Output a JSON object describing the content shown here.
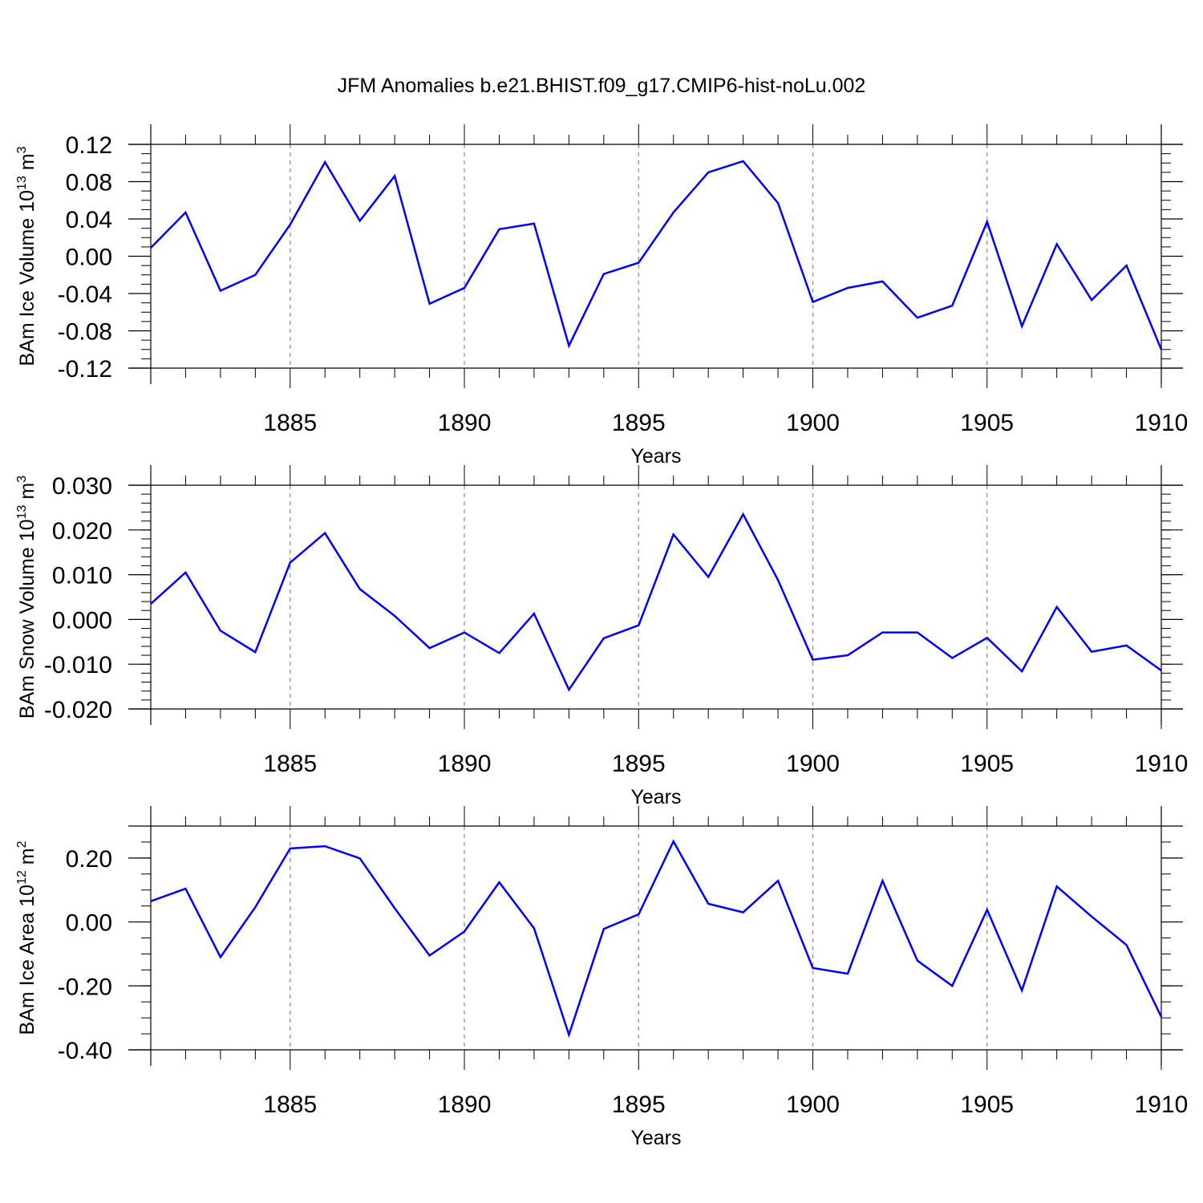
{
  "figure": {
    "title": "JFM Anomalies b.e21.BHIST.f09_g17.CMIP6-hist-noLu.002"
  },
  "chart_data": [
    {
      "type": "line",
      "xlabel": "Years",
      "ylabel": "BAm Ice Volume 10",
      "ylabel_exp": "13",
      "ylabel_unit": "m",
      "ylabel_unit_exp": "3",
      "xlim": [
        1881,
        1910
      ],
      "ylim": [
        -0.12,
        0.12
      ],
      "x_ticks": [
        1885,
        1890,
        1895,
        1900,
        1905,
        1910
      ],
      "x_tick_labels": [
        "1885",
        "1890",
        "1895",
        "1900",
        "1905",
        "1910"
      ],
      "y_ticks": [
        -0.12,
        -0.08,
        -0.04,
        0.0,
        0.04,
        0.08,
        0.12
      ],
      "y_tick_labels": [
        "-0.12",
        "-0.08",
        "-0.04",
        "0.00",
        "0.04",
        "0.08",
        "0.12"
      ],
      "y_minor_step": 0.01,
      "vgrid": "dashed at major x ticks",
      "x": [
        1881,
        1882,
        1883,
        1884,
        1885,
        1886,
        1887,
        1888,
        1889,
        1890,
        1891,
        1892,
        1893,
        1894,
        1895,
        1896,
        1897,
        1898,
        1899,
        1900,
        1901,
        1902,
        1903,
        1904,
        1905,
        1906,
        1907,
        1908,
        1909,
        1910
      ],
      "y": [
        0.009,
        0.047,
        -0.037,
        -0.02,
        0.034,
        0.101,
        0.038,
        0.086,
        -0.051,
        -0.034,
        0.029,
        0.035,
        -0.096,
        -0.019,
        -0.007,
        0.047,
        0.09,
        0.102,
        0.057,
        -0.049,
        -0.034,
        -0.027,
        -0.066,
        -0.053,
        0.037,
        -0.075,
        0.013,
        -0.047,
        -0.01,
        -0.1
      ],
      "line_color": "#0000ff"
    },
    {
      "type": "line",
      "xlabel": "Years",
      "ylabel": "BAm Snow Volume 10",
      "ylabel_exp": "13",
      "ylabel_unit": "m",
      "ylabel_unit_exp": "3",
      "xlim": [
        1881,
        1910
      ],
      "ylim": [
        -0.02,
        0.03
      ],
      "x_ticks": [
        1885,
        1890,
        1895,
        1900,
        1905,
        1910
      ],
      "x_tick_labels": [
        "1885",
        "1890",
        "1895",
        "1900",
        "1905",
        "1910"
      ],
      "y_ticks": [
        -0.02,
        -0.01,
        0.0,
        0.01,
        0.02,
        0.03
      ],
      "y_tick_labels": [
        "-0.020",
        "-0.010",
        "0.000",
        "0.010",
        "0.020",
        "0.030"
      ],
      "y_minor_step": 0.002,
      "vgrid": "dashed at major x ticks",
      "x": [
        1881,
        1882,
        1883,
        1884,
        1885,
        1886,
        1887,
        1888,
        1889,
        1890,
        1891,
        1892,
        1893,
        1894,
        1895,
        1896,
        1897,
        1898,
        1899,
        1900,
        1901,
        1902,
        1903,
        1904,
        1905,
        1906,
        1907,
        1908,
        1909,
        1910
      ],
      "y": [
        0.0035,
        0.0105,
        -0.0025,
        -0.0073,
        0.0127,
        0.0193,
        0.0068,
        0.0008,
        -0.0064,
        -0.0029,
        -0.0075,
        0.0013,
        -0.0157,
        -0.0042,
        -0.0013,
        0.019,
        0.0095,
        0.0235,
        0.0088,
        -0.009,
        -0.008,
        -0.0029,
        -0.0029,
        -0.0086,
        -0.0041,
        -0.0116,
        0.0028,
        -0.0072,
        -0.0058,
        -0.0114
      ],
      "line_color": "#0000ff"
    },
    {
      "type": "line",
      "xlabel": "Years",
      "ylabel": "BAm Ice Area 10",
      "ylabel_exp": "12",
      "ylabel_unit": "m",
      "ylabel_unit_exp": "2",
      "xlim": [
        1881,
        1910
      ],
      "ylim": [
        -0.4,
        0.3
      ],
      "x_ticks": [
        1885,
        1890,
        1895,
        1900,
        1905,
        1910
      ],
      "x_tick_labels": [
        "1885",
        "1890",
        "1895",
        "1900",
        "1905",
        "1910"
      ],
      "y_ticks": [
        -0.4,
        -0.2,
        0.0,
        0.2
      ],
      "y_tick_labels": [
        "-0.40",
        "-0.20",
        "0.00",
        "0.20"
      ],
      "y_minor_step": 0.05,
      "vgrid": "dashed at major x ticks",
      "x": [
        1881,
        1882,
        1883,
        1884,
        1885,
        1886,
        1887,
        1888,
        1889,
        1890,
        1891,
        1892,
        1893,
        1894,
        1895,
        1896,
        1897,
        1898,
        1899,
        1900,
        1901,
        1902,
        1903,
        1904,
        1905,
        1906,
        1907,
        1908,
        1909,
        1910
      ],
      "y": [
        0.065,
        0.104,
        -0.11,
        0.046,
        0.23,
        0.237,
        0.199,
        0.043,
        -0.105,
        -0.03,
        0.124,
        -0.02,
        -0.353,
        -0.022,
        0.024,
        0.252,
        0.057,
        0.03,
        0.129,
        -0.144,
        -0.162,
        0.129,
        -0.121,
        -0.2,
        0.038,
        -0.214,
        0.111,
        0.017,
        -0.072,
        -0.297
      ],
      "line_color": "#0000ff"
    }
  ]
}
